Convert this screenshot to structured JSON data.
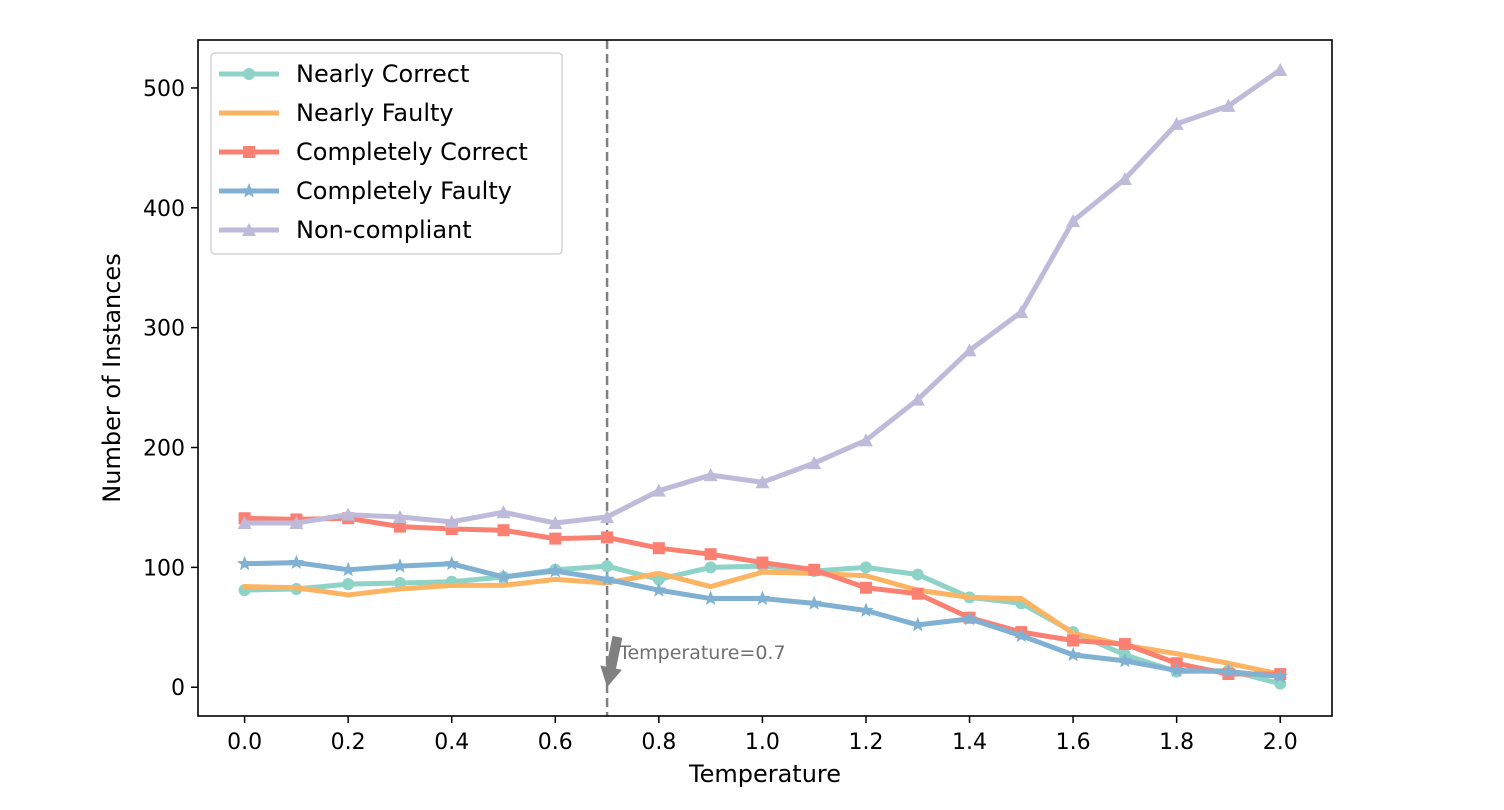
{
  "chart_data": {
    "type": "line",
    "xlabel": "Temperature",
    "ylabel": "Number of Instances",
    "xlim": [
      -0.09,
      2.1
    ],
    "ylim": [
      -24,
      540
    ],
    "xticks": [
      0.0,
      0.2,
      0.4,
      0.6,
      0.8,
      1.0,
      1.2,
      1.4,
      1.6,
      1.8,
      2.0
    ],
    "xtick_labels": [
      "0.0",
      "0.2",
      "0.4",
      "0.6",
      "0.8",
      "1.0",
      "1.2",
      "1.4",
      "1.6",
      "1.8",
      "2.0"
    ],
    "yticks": [
      0,
      100,
      200,
      300,
      400,
      500
    ],
    "ytick_labels": [
      "0",
      "100",
      "200",
      "300",
      "400",
      "500"
    ],
    "grid": false,
    "legend_position": "top-left",
    "x": [
      0.0,
      0.1,
      0.2,
      0.3,
      0.4,
      0.5,
      0.6,
      0.7,
      0.8,
      0.9,
      1.0,
      1.1,
      1.2,
      1.3,
      1.4,
      1.5,
      1.6,
      1.7,
      1.8,
      1.9,
      2.0
    ],
    "series": [
      {
        "name": "Nearly Correct",
        "color": "#8dd3c7",
        "marker": "circle",
        "values": [
          81,
          82,
          86,
          87,
          88,
          92,
          98,
          101,
          90,
          100,
          101,
          97,
          100,
          94,
          75,
          70,
          46,
          27,
          13,
          14,
          3
        ]
      },
      {
        "name": "Nearly Faulty",
        "color": "#fdb462",
        "marker": "none",
        "values": [
          84,
          83,
          77,
          82,
          85,
          85,
          90,
          87,
          95,
          84,
          96,
          95,
          93,
          81,
          75,
          74,
          45,
          35,
          28,
          20,
          11
        ]
      },
      {
        "name": "Completely Correct",
        "color": "#fb8072",
        "marker": "square",
        "values": [
          141,
          140,
          141,
          134,
          132,
          131,
          124,
          125,
          116,
          111,
          104,
          98,
          83,
          78,
          58,
          46,
          39,
          36,
          20,
          11,
          11
        ]
      },
      {
        "name": "Completely Faulty",
        "color": "#80b1d3",
        "marker": "star",
        "values": [
          103,
          104,
          98,
          101,
          103,
          92,
          97,
          90,
          81,
          74,
          74,
          70,
          64,
          52,
          57,
          43,
          27,
          22,
          14,
          13,
          9
        ]
      },
      {
        "name": "Non-compliant",
        "color": "#bebada",
        "marker": "triangle",
        "values": [
          137,
          137,
          144,
          142,
          138,
          146,
          137,
          142,
          164,
          177,
          171,
          187,
          206,
          240,
          281,
          313,
          389,
          424,
          470,
          485,
          515
        ]
      }
    ],
    "annotation": {
      "text": "Temperature=0.7",
      "vline_x": 0.7,
      "arrow_from": [
        0.72,
        42
      ],
      "arrow_to": [
        0.7,
        0
      ],
      "color": "#808080"
    }
  }
}
